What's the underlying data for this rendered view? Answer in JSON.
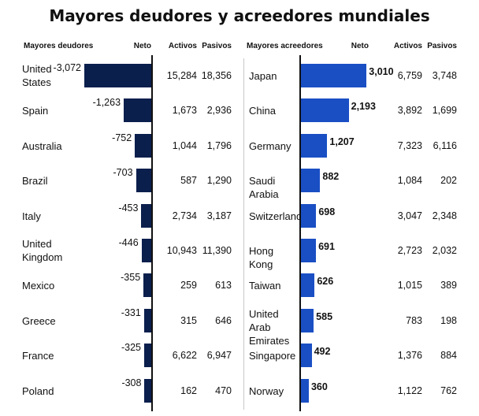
{
  "title": "Mayores deudores y acreedores mundiales",
  "chart_data": [
    {
      "type": "table",
      "name": "Mayores deudores",
      "headers": [
        "Mayores deudores",
        "Neto",
        "Activos",
        "Pasivos"
      ],
      "rows": [
        {
          "country": "United States",
          "neto": -3072,
          "activos": "15,284",
          "pasivos": "18,356",
          "neto_label": "-3,072"
        },
        {
          "country": "Spain",
          "neto": -1263,
          "activos": "1,673",
          "pasivos": "2,936",
          "neto_label": "-1,263"
        },
        {
          "country": "Australia",
          "neto": -752,
          "activos": "1,044",
          "pasivos": "1,796",
          "neto_label": "-752"
        },
        {
          "country": "Brazil",
          "neto": -703,
          "activos": "587",
          "pasivos": "1,290",
          "neto_label": "-703"
        },
        {
          "country": "Italy",
          "neto": -453,
          "activos": "2,734",
          "pasivos": "3,187",
          "neto_label": "-453"
        },
        {
          "country": "United Kingdom",
          "neto": -446,
          "activos": "10,943",
          "pasivos": "11,390",
          "neto_label": "-446"
        },
        {
          "country": "Mexico",
          "neto": -355,
          "activos": "259",
          "pasivos": "613",
          "neto_label": "-355"
        },
        {
          "country": "Greece",
          "neto": -331,
          "activos": "315",
          "pasivos": "646",
          "neto_label": "-331"
        },
        {
          "country": "France",
          "neto": -325,
          "activos": "6,622",
          "pasivos": "6,947",
          "neto_label": "-325"
        },
        {
          "country": "Poland",
          "neto": -308,
          "activos": "162",
          "pasivos": "470",
          "neto_label": "-308"
        }
      ],
      "bar_color": "#0b1f4d"
    },
    {
      "type": "table",
      "name": "Mayores acreedores",
      "headers": [
        "Mayores acreedores",
        "Neto",
        "Activos",
        "Pasivos"
      ],
      "rows": [
        {
          "country": "Japan",
          "neto": 3010,
          "activos": "6,759",
          "pasivos": "3,748",
          "neto_label": "3,010"
        },
        {
          "country": "China",
          "neto": 2193,
          "activos": "3,892",
          "pasivos": "1,699",
          "neto_label": "2,193"
        },
        {
          "country": "Germany",
          "neto": 1207,
          "activos": "7,323",
          "pasivos": "6,116",
          "neto_label": "1,207"
        },
        {
          "country": "Saudi Arabia",
          "neto": 882,
          "activos": "1,084",
          "pasivos": "202",
          "neto_label": "882"
        },
        {
          "country": "Switzerland",
          "neto": 698,
          "activos": "3,047",
          "pasivos": "2,348",
          "neto_label": "698"
        },
        {
          "country": "Hong Kong",
          "neto": 691,
          "activos": "2,723",
          "pasivos": "2,032",
          "neto_label": "691"
        },
        {
          "country": "Taiwan",
          "neto": 626,
          "activos": "1,015",
          "pasivos": "389",
          "neto_label": "626"
        },
        {
          "country": "United Arab Emirates",
          "neto": 585,
          "activos": "783",
          "pasivos": "198",
          "neto_label": "585"
        },
        {
          "country": "Singapore",
          "neto": 492,
          "activos": "1,376",
          "pasivos": "884",
          "neto_label": "492"
        },
        {
          "country": "Norway",
          "neto": 360,
          "activos": "1,122",
          "pasivos": "762",
          "neto_label": "360"
        }
      ],
      "bar_color": "#1a4fc4"
    }
  ]
}
